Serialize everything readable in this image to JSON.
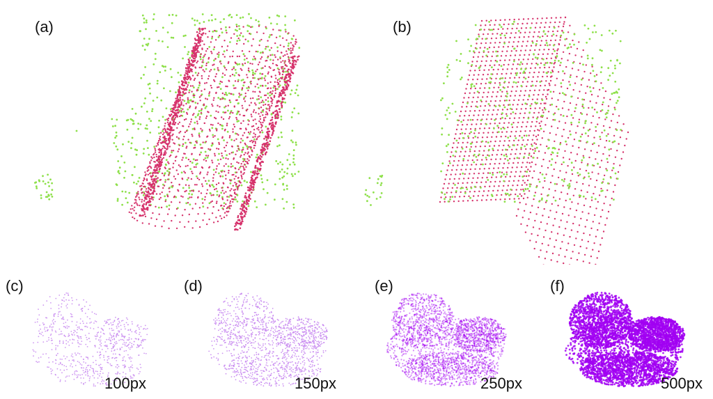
{
  "panels": {
    "a": {
      "label": "(a)"
    },
    "b": {
      "label": "(b)"
    },
    "c": {
      "label": "(c)",
      "resolution": "100px"
    },
    "d": {
      "label": "(d)",
      "resolution": "150px"
    },
    "e": {
      "label": "(e)",
      "resolution": "250px"
    },
    "f": {
      "label": "(f)",
      "resolution": "500px"
    }
  },
  "colors": {
    "model_points": "#d6336c",
    "scene_points": "#8ee04a",
    "point_cloud_purple": "#a100f2",
    "point_cloud_light": "#c98cf0"
  }
}
